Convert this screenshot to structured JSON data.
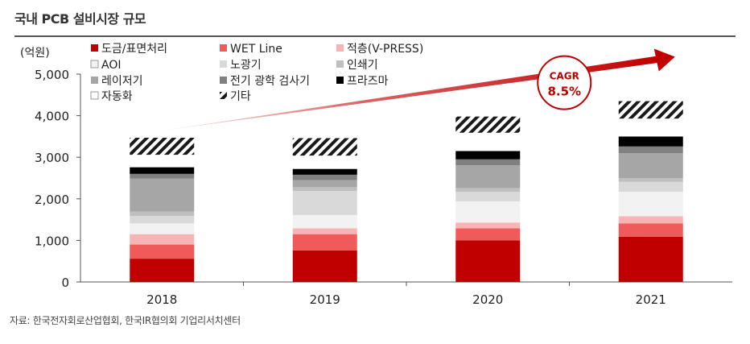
{
  "header": {
    "title": "국내 PCB 설비시장 규모"
  },
  "footer": {
    "source": "자료: 한국전자회로산업협회, 한국IR협의회 기업리서치센터"
  },
  "chart_data": {
    "type": "bar",
    "stacked": true,
    "title": "국내 PCB 설비시장 규모",
    "ylabel": "(억원)",
    "xlabel": "",
    "ylim": [
      0,
      5000
    ],
    "yticks": [
      0,
      1000,
      2000,
      3000,
      4000,
      5000
    ],
    "ytick_labels": [
      "0",
      "1,000",
      "2,000",
      "3,000",
      "4,000",
      "5,000"
    ],
    "categories": [
      "2018",
      "2019",
      "2020",
      "2021"
    ],
    "legend_position": "top-left",
    "series": [
      {
        "name": "도금/표면처리",
        "color": "#c00000",
        "pattern": "solid",
        "values": [
          560,
          760,
          1000,
          1090
        ]
      },
      {
        "name": "WET Line",
        "color": "#f05a5a",
        "pattern": "solid",
        "values": [
          340,
          390,
          290,
          320
        ]
      },
      {
        "name": "적층(V-PRESS)",
        "color": "#f8b4b4",
        "pattern": "solid",
        "values": [
          250,
          140,
          140,
          170
        ]
      },
      {
        "name": "AOI",
        "color": "#f2f2f2",
        "pattern": "solid",
        "values": [
          260,
          320,
          510,
          590
        ]
      },
      {
        "name": "노광기",
        "color": "#d9d9d9",
        "pattern": "solid",
        "values": [
          180,
          580,
          230,
          240
        ]
      },
      {
        "name": "인쇄기",
        "color": "#bfbfbf",
        "pattern": "solid",
        "values": [
          100,
          90,
          90,
          90
        ]
      },
      {
        "name": "레이저기",
        "color": "#a6a6a6",
        "pattern": "solid",
        "values": [
          800,
          170,
          550,
          600
        ]
      },
      {
        "name": "전기 광학 검사기",
        "color": "#808080",
        "pattern": "solid",
        "values": [
          110,
          130,
          140,
          160
        ]
      },
      {
        "name": "프라즈마",
        "color": "#000000",
        "pattern": "solid",
        "values": [
          160,
          140,
          200,
          240
        ]
      },
      {
        "name": "자동화",
        "color": "#ffffff",
        "pattern": "solid",
        "values": [
          300,
          320,
          440,
          430
        ]
      },
      {
        "name": "기타",
        "color": "#1a1a1a",
        "pattern": "hatch",
        "values": [
          410,
          420,
          390,
          420
        ]
      }
    ],
    "annotation": {
      "label": "CAGR",
      "value": "8.5%",
      "color": "#c00000"
    }
  }
}
